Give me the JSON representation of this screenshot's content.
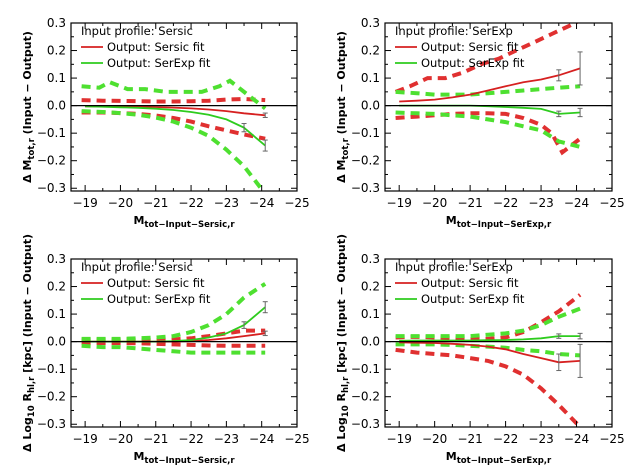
{
  "chart_data": [
    {
      "type": "line",
      "panel": "top-left",
      "legend": {
        "profile": "Input profile: Sersic",
        "entries": [
          "Output: Sersic fit",
          "Output: SerExp fit"
        ],
        "placement": "top-left"
      },
      "ylabel_main": "Δ M",
      "ylabel_sub": "tot,r",
      "ylabel_rest": "(Input − Output)",
      "xlabel_main": "M",
      "xlabel_sub": "tot−Input−Sersic,r",
      "xlim": [
        -18.6,
        -25.0
      ],
      "ylim": [
        -0.31,
        0.3
      ],
      "xticks": [
        -19,
        -20,
        -21,
        -22,
        -23,
        -24,
        -25
      ],
      "xtick_labels": [
        "−19",
        "−20",
        "−21",
        "−22",
        "−23",
        "−24",
        "−25"
      ],
      "yticks": [
        -0.3,
        -0.2,
        -0.1,
        0.0,
        0.1,
        0.2,
        0.3
      ],
      "ytick_labels": [
        "−0.3",
        "−0.2",
        "−0.1",
        "0.0",
        "0.1",
        "0.2",
        "0.3"
      ],
      "series": [
        {
          "name": "Output: Sersic fit",
          "role": "median",
          "color": "#d62020",
          "x": [
            -19,
            -19.5,
            -20,
            -20.5,
            -21,
            -21.5,
            -22,
            -22.5,
            -23,
            -23.5,
            -24.1
          ],
          "y": [
            -0.003,
            -0.003,
            -0.003,
            -0.004,
            -0.005,
            -0.007,
            -0.01,
            -0.014,
            -0.02,
            -0.028,
            -0.035
          ]
        },
        {
          "name": "Output: SerExp fit",
          "role": "median",
          "color": "#2ecc1e",
          "x": [
            -19,
            -19.5,
            -20,
            -20.5,
            -21,
            -21.5,
            -22,
            -22.5,
            -23,
            -23.5,
            -24.1
          ],
          "y": [
            -0.003,
            -0.004,
            -0.006,
            -0.008,
            -0.011,
            -0.016,
            -0.023,
            -0.033,
            -0.05,
            -0.08,
            -0.145
          ]
        },
        {
          "role": "band",
          "color": "#e03030",
          "x": [
            -18.9,
            -19.5,
            -20,
            -20.5,
            -21,
            -21.5,
            -22,
            -22.5,
            -23,
            -23.5,
            -24.1
          ],
          "y": [
            0.02,
            0.018,
            0.017,
            0.016,
            0.015,
            0.015,
            0.016,
            0.018,
            0.022,
            0.024,
            0.02
          ]
        },
        {
          "role": "band",
          "color": "#e03030",
          "x": [
            -18.9,
            -19.5,
            -20,
            -20.5,
            -21,
            -21.5,
            -22,
            -22.5,
            -23,
            -23.5,
            -24.1
          ],
          "y": [
            -0.025,
            -0.025,
            -0.027,
            -0.03,
            -0.036,
            -0.045,
            -0.058,
            -0.075,
            -0.09,
            -0.105,
            -0.12
          ]
        },
        {
          "role": "band",
          "color": "#4ee030",
          "x": [
            -18.9,
            -19.4,
            -19.7,
            -20.2,
            -20.7,
            -21.3,
            -21.8,
            -22.3,
            -22.8,
            -23.1,
            -23.4,
            -24.1
          ],
          "y": [
            0.07,
            0.065,
            0.085,
            0.06,
            0.06,
            0.05,
            0.05,
            0.05,
            0.07,
            0.09,
            0.06,
            -0.01
          ]
        },
        {
          "role": "band",
          "color": "#4ee030",
          "x": [
            -18.9,
            -19.5,
            -20,
            -20.5,
            -21,
            -21.5,
            -22,
            -22.5,
            -23,
            -23.5,
            -24.1
          ],
          "y": [
            -0.02,
            -0.023,
            -0.027,
            -0.033,
            -0.043,
            -0.058,
            -0.08,
            -0.11,
            -0.16,
            -0.22,
            -0.32
          ]
        }
      ],
      "errorbars": [
        {
          "x": -23.5,
          "y": -0.08,
          "err": 0.015
        },
        {
          "x": -24.1,
          "y": -0.145,
          "err": 0.02
        },
        {
          "x": -24.1,
          "y": -0.035,
          "err": 0.008
        }
      ]
    },
    {
      "type": "line",
      "panel": "top-right",
      "legend": {
        "profile": "Input profile: SerExp",
        "entries": [
          "Output: Sersic fit",
          "Output: SerExp fit"
        ],
        "placement": "top-left"
      },
      "ylabel_main": "Δ M",
      "ylabel_sub": "tot,r",
      "ylabel_rest": "(Input − Output)",
      "xlabel_main": "M",
      "xlabel_sub": "tot−Input−SerExp,r",
      "xlim": [
        -18.6,
        -25.0
      ],
      "ylim": [
        -0.31,
        0.3
      ],
      "xticks": [
        -19,
        -20,
        -21,
        -22,
        -23,
        -24,
        -25
      ],
      "xtick_labels": [
        "−19",
        "−20",
        "−21",
        "−22",
        "−23",
        "−24",
        "−25"
      ],
      "yticks": [
        -0.3,
        -0.2,
        -0.1,
        0.0,
        0.1,
        0.2,
        0.3
      ],
      "ytick_labels": [
        "−0.3",
        "−0.2",
        "−0.1",
        "0.0",
        "0.1",
        "0.2",
        "0.3"
      ],
      "series": [
        {
          "name": "Output: Sersic fit",
          "role": "median",
          "color": "#d62020",
          "x": [
            -19,
            -19.5,
            -20,
            -20.5,
            -21,
            -21.5,
            -22,
            -22.5,
            -23,
            -23.5,
            -24.1
          ],
          "y": [
            0.015,
            0.018,
            0.022,
            0.03,
            0.04,
            0.055,
            0.07,
            0.085,
            0.095,
            0.11,
            0.135
          ]
        },
        {
          "name": "Output: SerExp fit",
          "role": "median",
          "color": "#2ecc1e",
          "x": [
            -19,
            -19.5,
            -20,
            -20.5,
            -21,
            -21.5,
            -22,
            -22.5,
            -23,
            -23.5,
            -24.1
          ],
          "y": [
            0.0,
            0.0,
            0.0,
            0.0,
            0.0,
            -0.002,
            -0.005,
            -0.008,
            -0.012,
            -0.03,
            -0.025
          ]
        },
        {
          "role": "band",
          "color": "#e03030",
          "x": [
            -18.9,
            -19.3,
            -19.8,
            -20.3,
            -20.8,
            -21.3,
            -21.8,
            -22.3,
            -22.8,
            -23.3,
            -23.8,
            -24.1
          ],
          "y": [
            0.05,
            0.07,
            0.1,
            0.1,
            0.12,
            0.15,
            0.17,
            0.2,
            0.23,
            0.26,
            0.29,
            0.31
          ]
        },
        {
          "role": "band",
          "color": "#e03030",
          "x": [
            -18.9,
            -19.5,
            -20,
            -20.5,
            -21,
            -21.5,
            -22,
            -22.5,
            -23,
            -23.3,
            -23.6,
            -23.8,
            -24.1
          ],
          "y": [
            -0.045,
            -0.04,
            -0.035,
            -0.03,
            -0.028,
            -0.028,
            -0.03,
            -0.045,
            -0.07,
            -0.1,
            -0.17,
            -0.15,
            -0.12
          ]
        },
        {
          "role": "band",
          "color": "#4ee030",
          "x": [
            -18.9,
            -19.5,
            -20,
            -20.5,
            -21,
            -21.5,
            -22,
            -22.5,
            -23,
            -23.5,
            -24.1
          ],
          "y": [
            0.05,
            0.045,
            0.04,
            0.04,
            0.04,
            0.045,
            0.05,
            0.055,
            0.06,
            0.065,
            0.07
          ]
        },
        {
          "role": "band",
          "color": "#4ee030",
          "x": [
            -18.9,
            -19.5,
            -20,
            -20.5,
            -21,
            -21.5,
            -22,
            -22.5,
            -23,
            -23.5,
            -24.1
          ],
          "y": [
            -0.025,
            -0.028,
            -0.03,
            -0.035,
            -0.04,
            -0.05,
            -0.06,
            -0.075,
            -0.09,
            -0.13,
            -0.15
          ]
        }
      ],
      "errorbars": [
        {
          "x": -23.5,
          "y": 0.11,
          "err": 0.02
        },
        {
          "x": -24.1,
          "y": 0.135,
          "err": 0.06
        },
        {
          "x": -23.5,
          "y": -0.03,
          "err": 0.01
        },
        {
          "x": -24.1,
          "y": -0.025,
          "err": 0.015
        }
      ]
    },
    {
      "type": "line",
      "panel": "bottom-left",
      "legend": {
        "profile": "Input profile: Sersic",
        "entries": [
          "Output: Sersic fit",
          "Output: SerExp fit"
        ],
        "placement": "top-left"
      },
      "ylabel_main": "Δ Log",
      "ylabel_log_sub": "10",
      "ylabel_mid": " R",
      "ylabel_sub": "hl,r",
      "ylabel_rest": " [kpc] (Input − Output)",
      "xlabel_main": "M",
      "xlabel_sub": "tot−Input−Sersic,r",
      "xlim": [
        -18.6,
        -25.0
      ],
      "ylim": [
        -0.31,
        0.3
      ],
      "xticks": [
        -19,
        -20,
        -21,
        -22,
        -23,
        -24,
        -25
      ],
      "xtick_labels": [
        "−19",
        "−20",
        "−21",
        "−22",
        "−23",
        "−24",
        "−25"
      ],
      "yticks": [
        -0.3,
        -0.2,
        -0.1,
        0.0,
        0.1,
        0.2,
        0.3
      ],
      "ytick_labels": [
        "−0.3",
        "−0.2",
        "−0.1",
        "0.0",
        "0.1",
        "0.2",
        "0.3"
      ],
      "series": [
        {
          "name": "Output: Sersic fit",
          "role": "median",
          "color": "#d62020",
          "x": [
            -19,
            -19.5,
            -20,
            -20.5,
            -21,
            -21.5,
            -22,
            -22.5,
            -23,
            -23.5,
            -24.1
          ],
          "y": [
            0.0,
            0.0,
            0.0,
            0.0,
            0.0,
            0.0,
            0.002,
            0.006,
            0.012,
            0.02,
            0.03
          ]
        },
        {
          "name": "Output: SerExp fit",
          "role": "median",
          "color": "#2ecc1e",
          "x": [
            -19,
            -19.5,
            -20,
            -20.5,
            -21,
            -21.5,
            -22,
            -22.5,
            -23,
            -23.5,
            -24.1
          ],
          "y": [
            0.0,
            0.0,
            0.0,
            0.0,
            0.0,
            0.002,
            0.006,
            0.015,
            0.03,
            0.06,
            0.125
          ]
        },
        {
          "role": "band",
          "color": "#e03030",
          "x": [
            -18.9,
            -19.5,
            -20,
            -20.5,
            -21,
            -21.5,
            -22,
            -22.5,
            -23,
            -23.5,
            -24.1
          ],
          "y": [
            0.005,
            0.005,
            0.005,
            0.005,
            0.006,
            0.008,
            0.012,
            0.02,
            0.03,
            0.04,
            0.04
          ]
        },
        {
          "role": "band",
          "color": "#e03030",
          "x": [
            -18.9,
            -19.5,
            -20,
            -20.5,
            -21,
            -21.5,
            -22,
            -22.5,
            -23,
            -23.5,
            -24.1
          ],
          "y": [
            -0.005,
            -0.005,
            -0.005,
            -0.006,
            -0.008,
            -0.01,
            -0.012,
            -0.014,
            -0.015,
            -0.015,
            -0.015
          ]
        },
        {
          "role": "band",
          "color": "#4ee030",
          "x": [
            -18.9,
            -19.5,
            -20,
            -20.5,
            -21,
            -21.5,
            -22,
            -22.5,
            -23,
            -23.5,
            -24.1
          ],
          "y": [
            0.01,
            0.01,
            0.01,
            0.012,
            0.015,
            0.02,
            0.035,
            0.06,
            0.1,
            0.16,
            0.21
          ]
        },
        {
          "role": "band",
          "color": "#4ee030",
          "x": [
            -18.9,
            -19.5,
            -20,
            -20.5,
            -21,
            -21.5,
            -22,
            -22.5,
            -23,
            -23.5,
            -24.1
          ],
          "y": [
            -0.015,
            -0.02,
            -0.02,
            -0.025,
            -0.03,
            -0.035,
            -0.04,
            -0.04,
            -0.04,
            -0.04,
            -0.04
          ]
        }
      ],
      "errorbars": [
        {
          "x": -23.5,
          "y": 0.06,
          "err": 0.012
        },
        {
          "x": -24.1,
          "y": 0.125,
          "err": 0.02
        },
        {
          "x": -24.1,
          "y": 0.03,
          "err": 0.008
        }
      ]
    },
    {
      "type": "line",
      "panel": "bottom-right",
      "legend": {
        "profile": "Input profile: SerExp",
        "entries": [
          "Output: Sersic fit",
          "Output: SerExp fit"
        ],
        "placement": "top-left"
      },
      "ylabel_main": "Δ Log",
      "ylabel_log_sub": "10",
      "ylabel_mid": " R",
      "ylabel_sub": "hl,r",
      "ylabel_rest": " [kpc] (Input − Output)",
      "xlabel_main": "M",
      "xlabel_sub": "tot−Input−SerExp,r",
      "xlim": [
        -18.6,
        -25.0
      ],
      "ylim": [
        -0.31,
        0.3
      ],
      "xticks": [
        -19,
        -20,
        -21,
        -22,
        -23,
        -24,
        -25
      ],
      "xtick_labels": [
        "−19",
        "−20",
        "−21",
        "−22",
        "−23",
        "−24",
        "−25"
      ],
      "yticks": [
        -0.3,
        -0.2,
        -0.1,
        0.0,
        0.1,
        0.2,
        0.3
      ],
      "ytick_labels": [
        "−0.3",
        "−0.2",
        "−0.1",
        "0.0",
        "0.1",
        "0.2",
        "0.3"
      ],
      "series": [
        {
          "name": "Output: Sersic fit",
          "role": "median",
          "color": "#d62020",
          "x": [
            -19,
            -19.5,
            -20,
            -20.5,
            -21,
            -21.5,
            -22,
            -22.5,
            -23,
            -23.5,
            -24.1
          ],
          "y": [
            -0.003,
            -0.004,
            -0.005,
            -0.008,
            -0.012,
            -0.018,
            -0.028,
            -0.045,
            -0.06,
            -0.075,
            -0.07
          ]
        },
        {
          "name": "Output: SerExp fit",
          "role": "median",
          "color": "#2ecc1e",
          "x": [
            -19,
            -19.5,
            -20,
            -20.5,
            -21,
            -21.5,
            -22,
            -22.5,
            -23,
            -23.5,
            -24.1
          ],
          "y": [
            0.003,
            0.004,
            0.004,
            0.004,
            0.004,
            0.005,
            0.006,
            0.008,
            0.012,
            0.02,
            0.02
          ]
        },
        {
          "role": "band",
          "color": "#e03030",
          "x": [
            -18.9,
            -19.5,
            -20,
            -20.5,
            -21,
            -21.5,
            -22,
            -22.5,
            -23,
            -23.5,
            -24.1
          ],
          "y": [
            0.015,
            0.018,
            0.015,
            0.012,
            0.01,
            0.01,
            0.015,
            0.035,
            0.07,
            0.11,
            0.17
          ]
        },
        {
          "role": "band",
          "color": "#e03030",
          "x": [
            -18.9,
            -19.5,
            -20,
            -20.5,
            -21,
            -21.5,
            -22,
            -22.5,
            -23,
            -23.5,
            -24.1
          ],
          "y": [
            -0.03,
            -0.04,
            -0.045,
            -0.05,
            -0.06,
            -0.07,
            -0.09,
            -0.12,
            -0.17,
            -0.23,
            -0.31
          ]
        },
        {
          "role": "band",
          "color": "#4ee030",
          "x": [
            -18.9,
            -19.5,
            -20,
            -20.5,
            -21,
            -21.5,
            -22,
            -22.5,
            -23,
            -23.5,
            -24.1
          ],
          "y": [
            0.02,
            0.02,
            0.02,
            0.02,
            0.02,
            0.025,
            0.03,
            0.04,
            0.06,
            0.09,
            0.12
          ]
        },
        {
          "role": "band",
          "color": "#4ee030",
          "x": [
            -18.9,
            -19.5,
            -20,
            -20.5,
            -21,
            -21.5,
            -22,
            -22.5,
            -23,
            -23.5,
            -24.1
          ],
          "y": [
            -0.01,
            -0.01,
            -0.01,
            -0.012,
            -0.015,
            -0.018,
            -0.022,
            -0.03,
            -0.035,
            -0.045,
            -0.05
          ]
        }
      ],
      "errorbars": [
        {
          "x": -23.5,
          "y": -0.075,
          "err": 0.03
        },
        {
          "x": -24.1,
          "y": -0.07,
          "err": 0.06
        },
        {
          "x": -23.5,
          "y": 0.02,
          "err": 0.008
        },
        {
          "x": -24.1,
          "y": 0.02,
          "err": 0.01
        }
      ]
    }
  ]
}
